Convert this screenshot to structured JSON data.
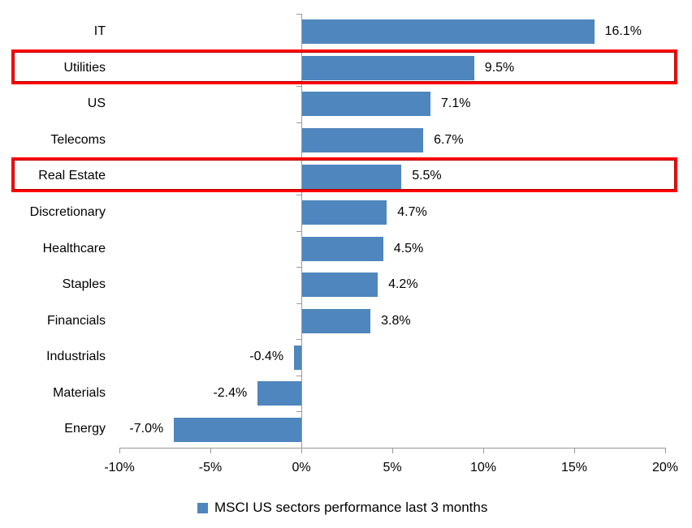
{
  "chart_data": {
    "type": "bar",
    "orientation": "horizontal",
    "title": "",
    "categories": [
      "IT",
      "Utilities",
      "US",
      "Telecoms",
      "Real Estate",
      "Discretionary",
      "Healthcare",
      "Staples",
      "Financials",
      "Industrials",
      "Materials",
      "Energy"
    ],
    "values": [
      16.1,
      9.5,
      7.1,
      6.7,
      5.5,
      4.7,
      4.5,
      4.2,
      3.8,
      -0.4,
      -2.4,
      -7.0
    ],
    "value_labels": [
      "16.1%",
      "9.5%",
      "7.1%",
      "6.7%",
      "5.5%",
      "4.7%",
      "4.5%",
      "4.2%",
      "3.8%",
      "-0.4%",
      "-2.4%",
      "-7.0%"
    ],
    "highlighted_categories": [
      "Utilities",
      "Real Estate"
    ],
    "xlim": [
      -10,
      20
    ],
    "x_tick_values": [
      -10,
      -5,
      0,
      5,
      10,
      15,
      20
    ],
    "x_tick_labels": [
      "-10%",
      "-5%",
      "0%",
      "5%",
      "10%",
      "15%",
      "20%"
    ],
    "grid": false,
    "legend_position": "bottom",
    "legend": [
      {
        "label": "MSCI US sectors performance last 3 months",
        "color": "#4F86BD"
      }
    ],
    "colors": {
      "bar": "#4F86BD",
      "highlight_box": "#FE0000",
      "highlight_box_inner": "#B40000",
      "axis": "#9A9A9A",
      "text": "#000000",
      "background": "#FFFFFF"
    }
  }
}
